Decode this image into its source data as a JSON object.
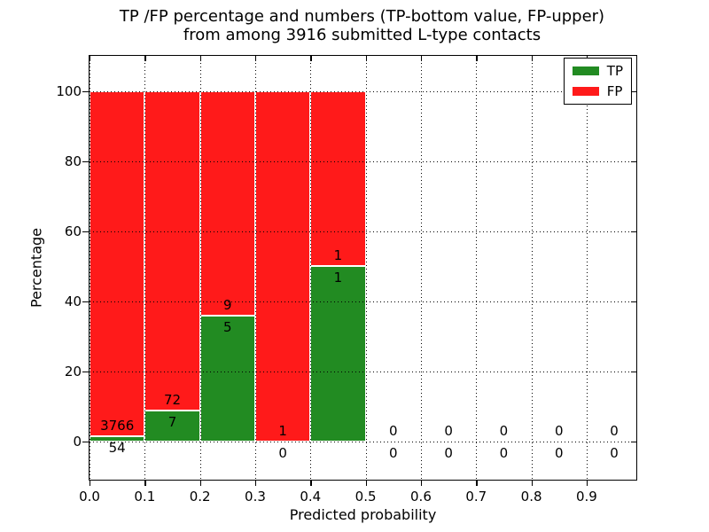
{
  "chart_data": {
    "type": "bar",
    "stacked": true,
    "normalized_to_percent": true,
    "title": "TP /FP percentage and numbers (TP-bottom value, FP-upper)\nfrom among 3916 submitted L-type contacts",
    "xlabel": "Predicted probability",
    "ylabel": "Percentage",
    "total_contacts": 3916,
    "grid": "dotted",
    "legend_position": "upper-right",
    "series": [
      {
        "name": "TP",
        "color": "#228b22"
      },
      {
        "name": "FP",
        "color": "#ff1a1a"
      }
    ],
    "bins": [
      {
        "x0": 0.0,
        "x1": 0.1,
        "tp": 54,
        "fp": 3766
      },
      {
        "x0": 0.1,
        "x1": 0.2,
        "tp": 7,
        "fp": 72
      },
      {
        "x0": 0.2,
        "x1": 0.3,
        "tp": 5,
        "fp": 9
      },
      {
        "x0": 0.3,
        "x1": 0.4,
        "tp": 0,
        "fp": 1
      },
      {
        "x0": 0.4,
        "x1": 0.5,
        "tp": 1,
        "fp": 1
      },
      {
        "x0": 0.5,
        "x1": 0.6,
        "tp": 0,
        "fp": 0
      },
      {
        "x0": 0.6,
        "x1": 0.7,
        "tp": 0,
        "fp": 0
      },
      {
        "x0": 0.7,
        "x1": 0.8,
        "tp": 0,
        "fp": 0
      },
      {
        "x0": 0.8,
        "x1": 0.9,
        "tp": 0,
        "fp": 0
      },
      {
        "x0": 0.9,
        "x1": 1.0,
        "tp": 0,
        "fp": 0
      }
    ],
    "yticks": [
      0,
      20,
      40,
      60,
      80,
      100
    ],
    "xticks": [
      0.0,
      0.1,
      0.2,
      0.3,
      0.4,
      0.5,
      0.6,
      0.7,
      0.8,
      0.9
    ],
    "ylim": [
      -11,
      110
    ],
    "xlim": [
      0,
      0.99
    ]
  }
}
